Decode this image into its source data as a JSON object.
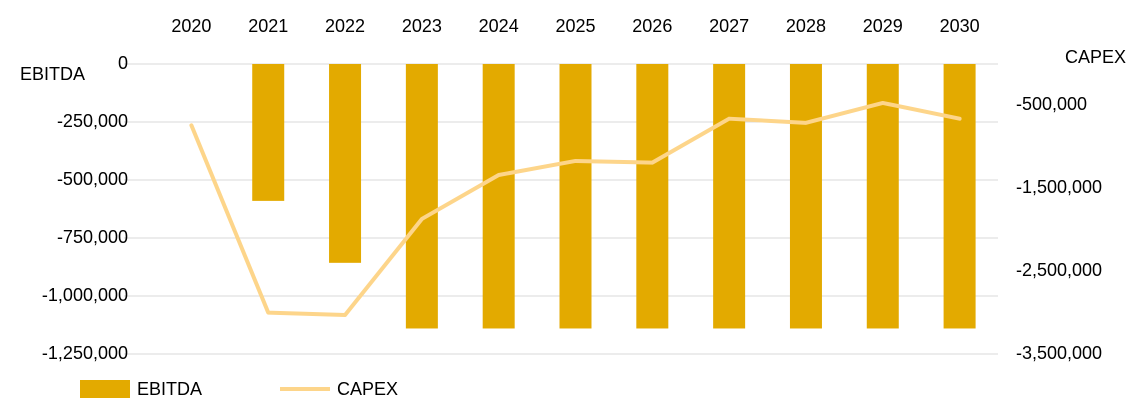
{
  "chart_data": {
    "type": "bar-line",
    "categories": [
      "2020",
      "2021",
      "2022",
      "2023",
      "2024",
      "2025",
      "2026",
      "2027",
      "2028",
      "2029",
      "2030"
    ],
    "y_label": "EBITDA",
    "y2_label": "CAPEX",
    "series": [
      {
        "name": "EBITDA",
        "type": "bar",
        "color": "#e3aa00",
        "values": [
          null,
          -590000,
          -857000,
          -1140000,
          -1140000,
          -1140000,
          -1140000,
          -1140000,
          -1140000,
          -1140000,
          -1140000
        ]
      },
      {
        "name": "CAPEX",
        "type": "line",
        "axis": "y2",
        "color": "#fdd58a",
        "values": [
          -740000,
          -3000000,
          -3030000,
          -1870000,
          -1340000,
          -1170000,
          -1190000,
          -660000,
          -710000,
          -470000,
          -660000
        ]
      }
    ],
    "ylim": [
      -1250000,
      0
    ],
    "yticks": [
      0,
      {
        "value": -250000,
        "label": "-250,000"
      },
      {
        "value": -500000,
        "label": "-500,000"
      },
      {
        "value": -750000,
        "label": "-750,000"
      },
      {
        "value": -1000000,
        "label": "-1,000,000"
      },
      {
        "value": -1250000,
        "label": "-1,250,000"
      }
    ],
    "y2lim": [
      -3500000,
      0
    ],
    "y2ticks": [
      {
        "value": -500000,
        "label": "-500,000"
      },
      {
        "value": -1500000,
        "label": "-1,500,000"
      },
      {
        "value": -2500000,
        "label": "-2,500,000"
      },
      {
        "value": -3500000,
        "label": "-3,500,000"
      }
    ],
    "grid": true,
    "legend": "bottom-left"
  }
}
